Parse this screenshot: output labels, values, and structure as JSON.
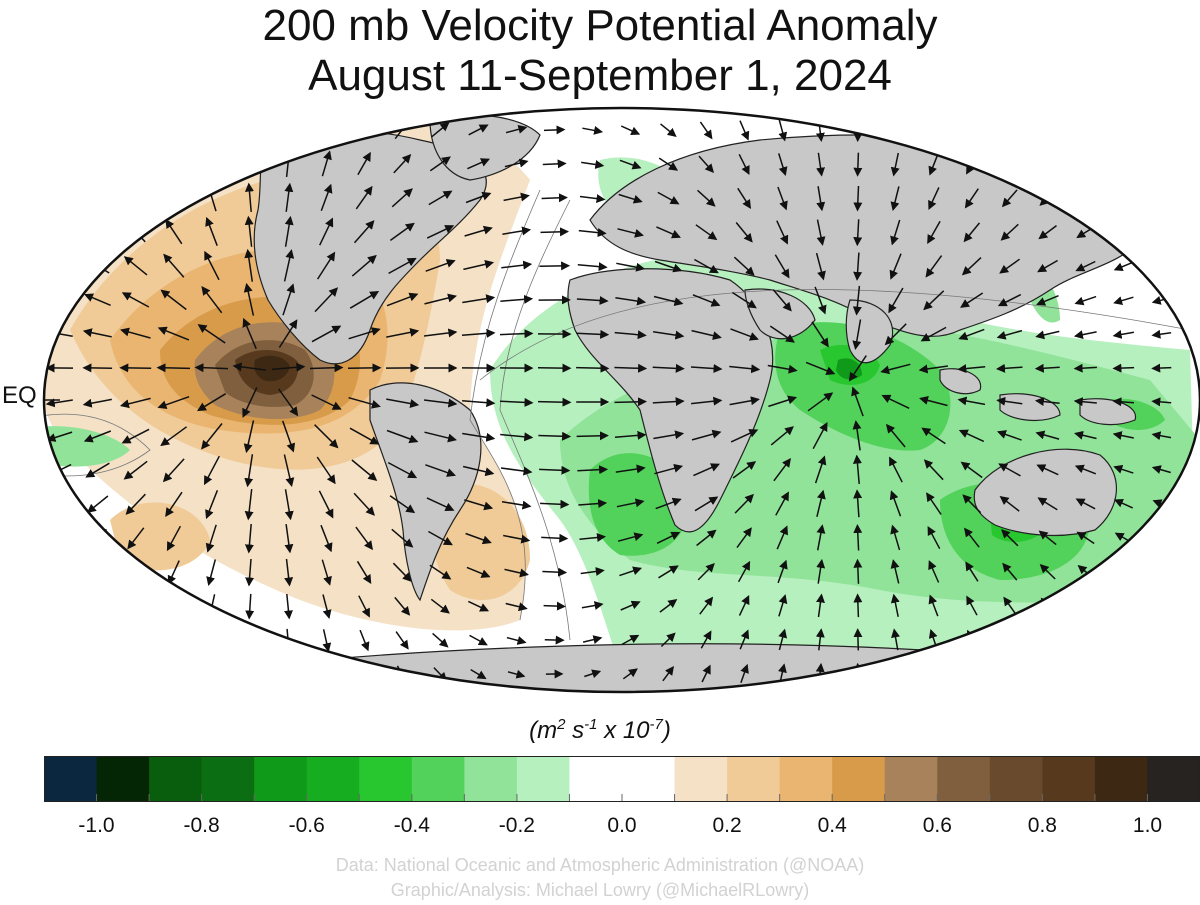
{
  "title_line1": "200 mb Velocity Potential Anomaly",
  "title_line2": "August 11-September 1, 2024",
  "eq_label": "EQ",
  "units": {
    "base": "(m",
    "sq": "2",
    "s": " s",
    "s_exp": "-1",
    "x": " x 10",
    "ten_exp": "-7",
    "close": ")"
  },
  "colorbar": {
    "colors": [
      "#0b2740",
      "#052605",
      "#095e0d",
      "#0b6e12",
      "#109a19",
      "#16ad20",
      "#28c72f",
      "#52d25a",
      "#91e39a",
      "#b7f0bf",
      "#ffffff",
      "#ffffff",
      "#f4e1c6",
      "#f0cb97",
      "#e9b571",
      "#d79b4a",
      "#a8825a",
      "#7f5f3e",
      "#6a4a2c",
      "#573a1d",
      "#3d2814",
      "#262321"
    ],
    "min": -1.1,
    "max": 1.1,
    "ticks": [
      "-1.0",
      "-0.8",
      "-0.6",
      "-0.4",
      "-0.2",
      "0.0",
      "0.2",
      "0.4",
      "0.6",
      "0.8",
      "1.0"
    ],
    "tick_values": [
      -1.0,
      -0.8,
      -0.6,
      -0.4,
      -0.2,
      0.0,
      0.2,
      0.4,
      0.6,
      0.8,
      1.0
    ]
  },
  "credits": {
    "line1": "Data: National Oceanic and Atmospheric Administration (@NOAA)",
    "line2": "Graphic/Analysis: Michael Lowry (@MichaelRLowry)"
  }
}
